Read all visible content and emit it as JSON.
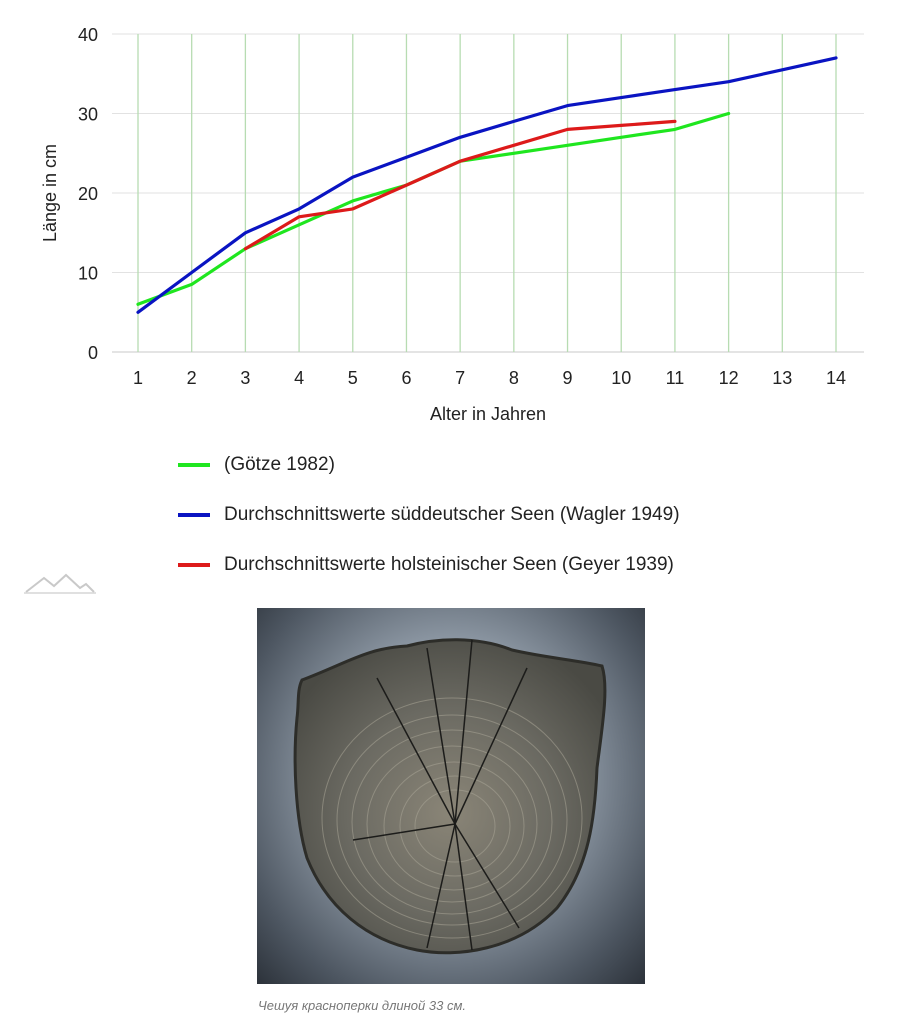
{
  "chart_data": {
    "type": "line",
    "x": [
      1,
      2,
      3,
      4,
      5,
      6,
      7,
      8,
      9,
      10,
      11,
      12,
      13,
      14
    ],
    "xlabel": "Alter in Jahren",
    "ylabel": "Länge in cm",
    "xlim": [
      1,
      14
    ],
    "ylim": [
      0,
      40
    ],
    "yticks": [
      0,
      10,
      20,
      30,
      40
    ],
    "grid": true,
    "legend_position": "bottom-left",
    "series": [
      {
        "name": "(Götze 1982)",
        "color": "#1fe61f",
        "points": [
          [
            1,
            6
          ],
          [
            2,
            8.5
          ],
          [
            3,
            13
          ],
          [
            4,
            16
          ],
          [
            5,
            19
          ],
          [
            6,
            21
          ],
          [
            7,
            24
          ],
          [
            8,
            25
          ],
          [
            9,
            26
          ],
          [
            10,
            27
          ],
          [
            11,
            28
          ],
          [
            12,
            30
          ]
        ]
      },
      {
        "name": "Durchschnittswerte süddeutscher Seen (Wagler 1949)",
        "color": "#0a14c2",
        "points": [
          [
            1,
            5
          ],
          [
            2,
            10
          ],
          [
            3,
            15
          ],
          [
            4,
            18
          ],
          [
            5,
            22
          ],
          [
            6,
            24.5
          ],
          [
            7,
            27
          ],
          [
            8,
            29
          ],
          [
            9,
            31
          ],
          [
            10,
            32
          ],
          [
            11,
            33
          ],
          [
            12,
            34
          ],
          [
            13,
            35.5
          ],
          [
            14,
            37
          ]
        ]
      },
      {
        "name": "Durchschnittswerte holsteinischer Seen (Geyer 1939)",
        "color": "#dd1a1a",
        "points": [
          [
            3,
            13
          ],
          [
            4,
            17
          ],
          [
            5,
            18
          ],
          [
            6,
            21
          ],
          [
            7,
            24
          ],
          [
            8,
            26
          ],
          [
            9,
            28
          ],
          [
            10,
            28.5
          ],
          [
            11,
            29
          ]
        ]
      }
    ]
  },
  "figure": {
    "logo_icon": "mountain-logo-icon",
    "photo_icon": "fish-scale-photo",
    "caption": "Чешуя красноперки длиной 33 см."
  }
}
